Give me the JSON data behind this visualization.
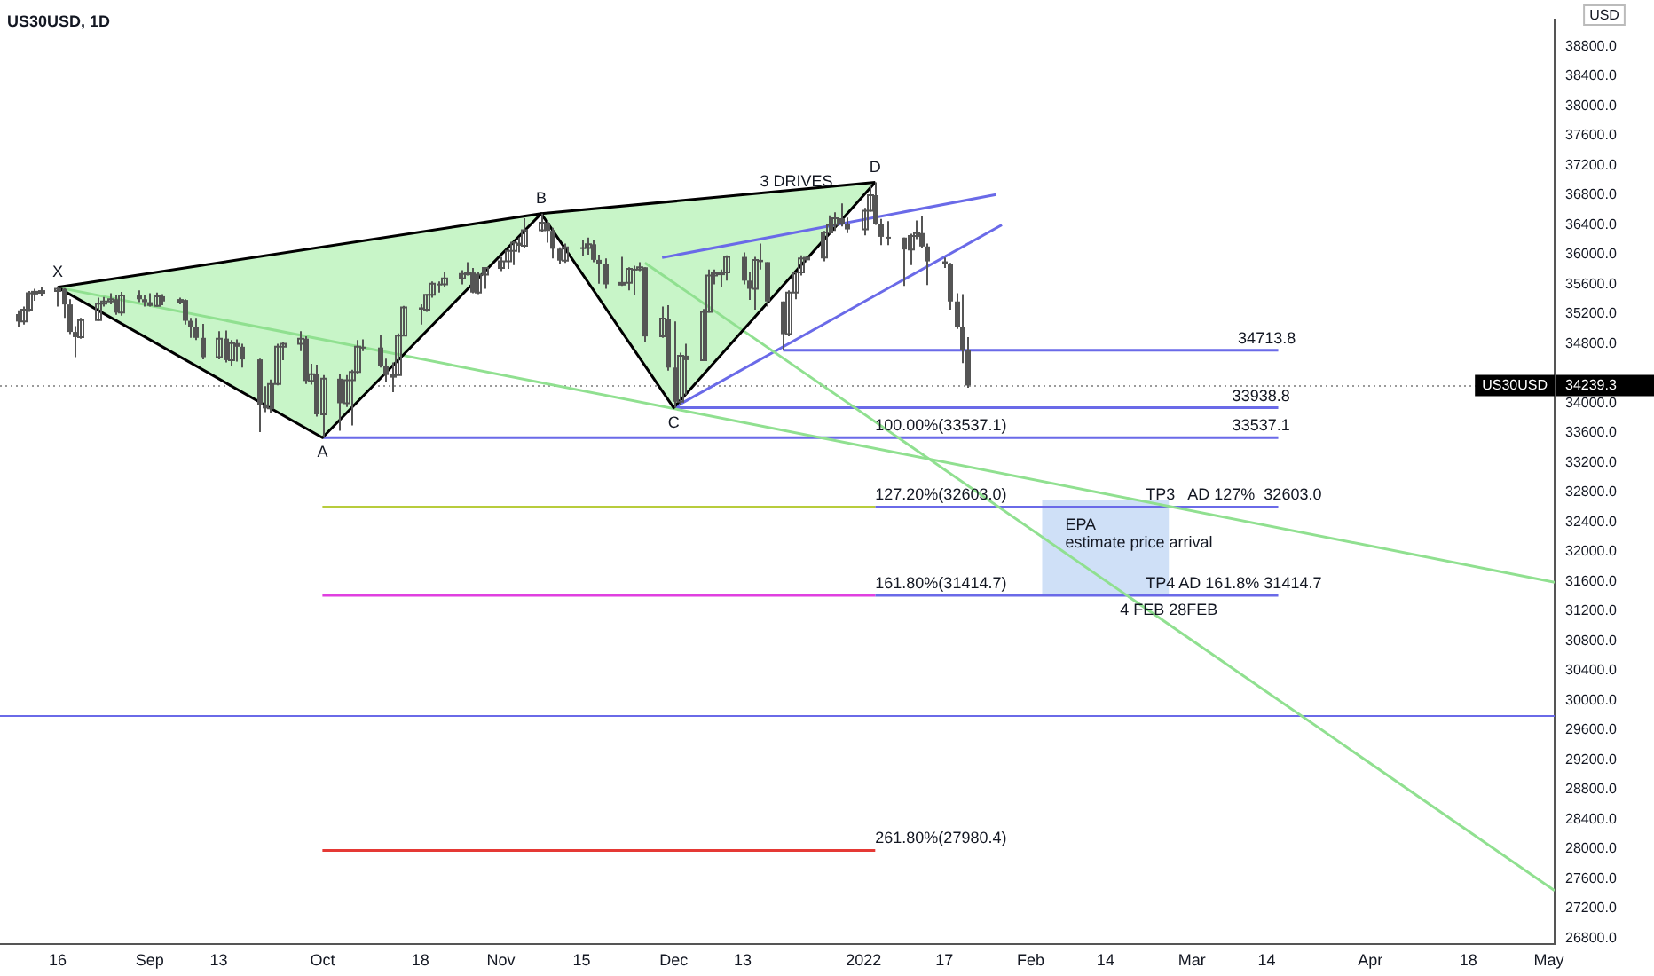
{
  "chart_data": {
    "type": "candlestick",
    "title": "US30USD, 1D",
    "ylabel": "USD",
    "color": "#555555",
    "x": [
      "2021-08-09",
      "2021-08-10",
      "2021-08-11",
      "2021-08-12",
      "2021-08-13",
      "2021-08-16",
      "2021-08-17",
      "2021-08-18",
      "2021-08-19",
      "2021-08-20",
      "2021-08-23",
      "2021-08-24",
      "2021-08-25",
      "2021-08-26",
      "2021-08-27",
      "2021-08-30",
      "2021-08-31",
      "2021-09-01",
      "2021-09-02",
      "2021-09-03",
      "2021-09-06",
      "2021-09-07",
      "2021-09-08",
      "2021-09-09",
      "2021-09-10",
      "2021-09-13",
      "2021-09-14",
      "2021-09-15",
      "2021-09-16",
      "2021-09-17",
      "2021-09-20",
      "2021-09-21",
      "2021-09-22",
      "2021-09-23",
      "2021-09-24",
      "2021-09-27",
      "2021-09-28",
      "2021-09-29",
      "2021-09-30",
      "2021-10-01",
      "2021-10-04",
      "2021-10-05",
      "2021-10-06",
      "2021-10-07",
      "2021-10-08",
      "2021-10-11",
      "2021-10-12",
      "2021-10-13",
      "2021-10-14",
      "2021-10-15",
      "2021-10-18",
      "2021-10-19",
      "2021-10-20",
      "2021-10-21",
      "2021-10-22",
      "2021-10-25",
      "2021-10-26",
      "2021-10-27",
      "2021-10-28",
      "2021-10-29",
      "2021-11-01",
      "2021-11-02",
      "2021-11-03",
      "2021-11-04",
      "2021-11-05",
      "2021-11-08",
      "2021-11-09",
      "2021-11-10",
      "2021-11-11",
      "2021-11-12",
      "2021-11-15",
      "2021-11-16",
      "2021-11-17",
      "2021-11-18",
      "2021-11-19",
      "2021-11-22",
      "2021-11-23",
      "2021-11-24",
      "2021-11-25",
      "2021-11-26",
      "2021-11-29",
      "2021-11-30",
      "2021-12-01",
      "2021-12-02",
      "2021-12-03",
      "2021-12-06",
      "2021-12-07",
      "2021-12-08",
      "2021-12-09",
      "2021-12-10",
      "2021-12-13",
      "2021-12-14",
      "2021-12-15",
      "2021-12-16",
      "2021-12-17",
      "2021-12-20",
      "2021-12-21",
      "2021-12-22",
      "2021-12-23",
      "2021-12-24",
      "2021-12-27",
      "2021-12-28",
      "2021-12-29",
      "2021-12-30",
      "2021-12-31",
      "2022-01-03",
      "2022-01-04",
      "2022-01-05",
      "2022-01-06",
      "2022-01-07",
      "2022-01-10",
      "2022-01-11",
      "2022-01-12",
      "2022-01-13",
      "2022-01-14",
      "2022-01-17",
      "2022-01-18",
      "2022-01-19",
      "2022-01-20",
      "2022-01-21"
    ],
    "ohlc": [
      [
        35200,
        35250,
        35030,
        35100
      ],
      [
        35100,
        35300,
        35060,
        35260
      ],
      [
        35260,
        35510,
        35230,
        35480
      ],
      [
        35480,
        35540,
        35380,
        35500
      ],
      [
        35500,
        35560,
        35440,
        35510
      ],
      [
        35510,
        35560,
        35300,
        35540
      ],
      [
        35540,
        35550,
        35150,
        35330
      ],
      [
        35330,
        35400,
        34930,
        34960
      ],
      [
        34960,
        35040,
        34620,
        34890
      ],
      [
        34890,
        35150,
        34870,
        35120
      ],
      [
        35120,
        35420,
        35110,
        35340
      ],
      [
        35340,
        35430,
        35300,
        35370
      ],
      [
        35370,
        35480,
        35330,
        35400
      ],
      [
        35400,
        35450,
        35190,
        35220
      ],
      [
        35220,
        35500,
        35180,
        35450
      ],
      [
        35450,
        35520,
        35360,
        35400
      ],
      [
        35400,
        35450,
        35300,
        35360
      ],
      [
        35360,
        35480,
        35300,
        35310
      ],
      [
        35310,
        35490,
        35300,
        35440
      ],
      [
        35440,
        35470,
        35320,
        35370
      ],
      [
        35370,
        35420,
        35330,
        35390
      ],
      [
        35390,
        35400,
        35060,
        35110
      ],
      [
        35110,
        35150,
        34880,
        35030
      ],
      [
        35030,
        35150,
        34850,
        34880
      ],
      [
        34880,
        35070,
        34590,
        34620
      ],
      [
        34620,
        34970,
        34590,
        34870
      ],
      [
        34870,
        34980,
        34550,
        34580
      ],
      [
        34580,
        34850,
        34500,
        34810
      ],
      [
        34810,
        34860,
        34560,
        34760
      ],
      [
        34760,
        34800,
        34480,
        34590
      ],
      [
        34590,
        34600,
        33610,
        33980
      ],
      [
        33980,
        34230,
        33880,
        33930
      ],
      [
        33930,
        34320,
        33870,
        34260
      ],
      [
        34260,
        34800,
        34240,
        34760
      ],
      [
        34760,
        34820,
        34580,
        34800
      ],
      [
        34800,
        34970,
        34700,
        34870
      ],
      [
        34870,
        34900,
        34260,
        34300
      ],
      [
        34300,
        34530,
        34250,
        34390
      ],
      [
        34390,
        34520,
        33820,
        33850
      ],
      [
        33850,
        34380,
        33537.1,
        34330
      ],
      [
        34330,
        34390,
        33630,
        34000
      ],
      [
        34000,
        34380,
        33950,
        34310
      ],
      [
        34310,
        34450,
        33700,
        34420
      ],
      [
        34420,
        34850,
        34400,
        34760
      ],
      [
        34760,
        34860,
        34700,
        34750
      ],
      [
        34750,
        34920,
        34480,
        34500
      ],
      [
        34500,
        34600,
        34290,
        34380
      ],
      [
        34380,
        34550,
        34150,
        34380
      ],
      [
        34380,
        34940,
        34380,
        34910
      ],
      [
        34910,
        35310,
        34900,
        35290
      ],
      [
        35290,
        35330,
        35060,
        35260
      ],
      [
        35260,
        35470,
        35230,
        35460
      ],
      [
        35460,
        35640,
        35420,
        35610
      ],
      [
        35610,
        35640,
        35490,
        35600
      ],
      [
        35600,
        35770,
        35560,
        35680
      ],
      [
        35680,
        35790,
        35600,
        35740
      ],
      [
        35740,
        35900,
        35720,
        35760
      ],
      [
        35760,
        35820,
        35480,
        35490
      ],
      [
        35490,
        35760,
        35470,
        35730
      ],
      [
        35730,
        35830,
        35540,
        35820
      ],
      [
        35820,
        35970,
        35780,
        35910
      ],
      [
        35910,
        36080,
        35810,
        36050
      ],
      [
        36050,
        36180,
        35860,
        36160
      ],
      [
        36160,
        36230,
        36030,
        36120
      ],
      [
        36120,
        36490,
        36090,
        36330
      ],
      [
        36330,
        36552,
        36300,
        36430
      ],
      [
        36430,
        36470,
        36160,
        36320
      ],
      [
        36320,
        36360,
        35950,
        36080
      ],
      [
        36080,
        36100,
        35880,
        35920
      ],
      [
        35920,
        36150,
        35890,
        36100
      ],
      [
        36100,
        36200,
        35980,
        36090
      ],
      [
        36090,
        36230,
        36000,
        36140
      ],
      [
        36140,
        36200,
        35900,
        35930
      ],
      [
        35930,
        36000,
        35610,
        35870
      ],
      [
        35870,
        35950,
        35540,
        35600
      ],
      [
        35600,
        35970,
        35580,
        35620
      ],
      [
        35620,
        35830,
        35520,
        35810
      ],
      [
        35810,
        35850,
        35460,
        35800
      ],
      [
        35800,
        35900,
        35780,
        35830
      ],
      [
        35830,
        35830,
        34820,
        34900
      ],
      [
        34900,
        35300,
        34880,
        35140
      ],
      [
        35140,
        35320,
        34440,
        34480
      ],
      [
        34480,
        35100,
        33938.8,
        34020
      ],
      [
        34020,
        34680,
        33980,
        34640
      ],
      [
        34640,
        34800,
        34110,
        34580
      ],
      [
        34580,
        35270,
        34570,
        35230
      ],
      [
        35230,
        35800,
        35220,
        35720
      ],
      [
        35720,
        35800,
        35600,
        35750
      ],
      [
        35750,
        35800,
        35560,
        35760
      ],
      [
        35760,
        35990,
        35650,
        35970
      ],
      [
        35970,
        36030,
        35600,
        35650
      ],
      [
        35650,
        35760,
        35390,
        35540
      ],
      [
        35540,
        35970,
        35260,
        35930
      ],
      [
        35930,
        36150,
        35800,
        35900
      ],
      [
        35900,
        35900,
        35300,
        35370
      ],
      [
        35370,
        35370,
        34713.8,
        34930
      ],
      [
        34930,
        35520,
        34900,
        35490
      ],
      [
        35490,
        35770,
        35400,
        35760
      ],
      [
        35760,
        35990,
        35720,
        35950
      ],
      [
        35950,
        35980,
        35900,
        35960
      ],
      [
        35960,
        36320,
        35910,
        36300
      ],
      [
        36300,
        36530,
        36280,
        36400
      ],
      [
        36400,
        36570,
        36320,
        36490
      ],
      [
        36490,
        36690,
        36380,
        36410
      ],
      [
        36410,
        36500,
        36290,
        36340
      ],
      [
        36340,
        36630,
        36260,
        36590
      ],
      [
        36590,
        36940,
        36580,
        36800
      ],
      [
        36800,
        36973,
        36400,
        36410
      ],
      [
        36410,
        36480,
        36130,
        36240
      ],
      [
        36240,
        36450,
        36130,
        36230
      ],
      [
        36230,
        36230,
        35580,
        36070
      ],
      [
        36070,
        36280,
        35860,
        36250
      ],
      [
        36250,
        36460,
        36210,
        36290
      ],
      [
        36290,
        36520,
        36090,
        36110
      ],
      [
        36110,
        36150,
        35590,
        35910
      ],
      [
        35910,
        35960,
        35820,
        35880
      ],
      [
        35880,
        35890,
        35260,
        35370
      ],
      [
        35370,
        35480,
        35000,
        35030
      ],
      [
        35030,
        35470,
        34540,
        34720
      ],
      [
        34720,
        34890,
        34210,
        34239.3
      ]
    ],
    "series": [
      {
        "type": "area",
        "color": "#c8f5c8",
        "x": [
          "2021-08-16",
          "2021-10-01",
          "2021-11-08",
          "2021-08-16"
        ],
        "values": [
          35560,
          33537.1,
          36552,
          35560
        ]
      },
      {
        "type": "area",
        "color": "#c8f5c8",
        "x": [
          "2021-11-08",
          "2021-12-01",
          "2022-01-05",
          "2021-11-08"
        ],
        "values": [
          36552,
          33938.8,
          36973,
          36552
        ]
      },
      {
        "type": "area",
        "color": "#cfe0f7",
        "x": [
          "2022-02-03",
          "2022-02-03",
          "2022-02-25",
          "2022-02-25"
        ],
        "values": [
          31414.7,
          32700,
          32700,
          31414.7
        ]
      },
      {
        "type": "line",
        "color": "#000000",
        "x": [
          "2021-08-16",
          "2021-10-01",
          "2021-11-08",
          "2021-12-01",
          "2022-01-05"
        ],
        "values": [
          35560,
          33537.1,
          36552,
          33938.8,
          36973
        ]
      },
      {
        "type": "line",
        "color": "#000000",
        "x": [
          "2021-08-16",
          "2021-11-08",
          "2022-01-05"
        ],
        "values": [
          35560,
          36552,
          36973
        ]
      },
      {
        "type": "line",
        "color": "#90e090",
        "x": [
          "2021-08-16",
          "2022-05-03"
        ],
        "values": [
          35560,
          31590
        ]
      },
      {
        "type": "line",
        "color": "#90e090",
        "x": [
          "2021-11-26",
          "2022-05-03"
        ],
        "values": [
          35890,
          27440
        ]
      },
      {
        "type": "line",
        "color": "#6a6ae8",
        "x": [
          "2021-11-29",
          "2022-01-26"
        ],
        "values": [
          35960,
          36810
        ]
      },
      {
        "type": "line",
        "color": "#6a6ae8",
        "x": [
          "2021-12-01",
          "2022-01-27"
        ],
        "values": [
          33938.8,
          36400
        ]
      },
      {
        "type": "line",
        "color": "#6a6ae8",
        "x": [
          "2021-12-20",
          "2022-03-16"
        ],
        "values": [
          34713.8,
          34713.8
        ]
      },
      {
        "type": "line",
        "color": "#6a6ae8",
        "x": [
          "2021-12-01",
          "2022-03-16"
        ],
        "values": [
          33938.8,
          33938.8
        ]
      },
      {
        "type": "line",
        "color": "#6a6ae8",
        "x": [
          "2021-10-01",
          "2022-03-16"
        ],
        "values": [
          33537.1,
          33537.1
        ]
      },
      {
        "type": "line",
        "color": "#b8cc3c",
        "x": [
          "2021-10-01",
          "2022-01-05"
        ],
        "values": [
          32603.0,
          32603.0
        ]
      },
      {
        "type": "line",
        "color": "#6a6ae8",
        "x": [
          "2022-01-05",
          "2022-03-16"
        ],
        "values": [
          32603.0,
          32603.0
        ]
      },
      {
        "type": "line",
        "color": "#e040e0",
        "x": [
          "2021-10-01",
          "2022-01-05"
        ],
        "values": [
          31414.7,
          31414.7
        ]
      },
      {
        "type": "line",
        "color": "#6a6ae8",
        "x": [
          "2022-01-05",
          "2022-03-16"
        ],
        "values": [
          31414.7,
          31414.7
        ]
      },
      {
        "type": "line",
        "color": "#e53935",
        "x": [
          "2021-10-01",
          "2022-01-05"
        ],
        "values": [
          27980.4,
          27980.4
        ]
      }
    ],
    "ref_lines": [
      {
        "axis": "y",
        "value": 29790,
        "color": "#6a6ae8",
        "line_style": "solid"
      },
      {
        "axis": "y",
        "value": 34239.3,
        "label": "34239.3",
        "color": "#9a9a9a",
        "line_style": "dotted"
      }
    ],
    "annotations": [
      {
        "text": "X",
        "x": "2021-08-16",
        "y": 35560
      },
      {
        "text": "A",
        "x": "2021-10-01",
        "y": 33537.1
      },
      {
        "text": "B",
        "x": "2021-11-08",
        "y": 36552
      },
      {
        "text": "C",
        "x": "2021-12-01",
        "y": 33938.8
      },
      {
        "text": "D",
        "x": "2022-01-05",
        "y": 36973
      },
      {
        "text": "3 DRIVES",
        "x": "2021-12-16",
        "y": 36828
      },
      {
        "text": "34713.8",
        "x": "2022-03-09",
        "y": 34713.8
      },
      {
        "text": "33938.8",
        "x": "2022-03-08",
        "y": 33938.8
      },
      {
        "text": "33537.1",
        "x": "2022-03-08",
        "y": 33537.1
      },
      {
        "text": "100.00%(33537.1)",
        "x": "2022-01-05",
        "y": 33537.1
      },
      {
        "text": "127.20%(32603.0)",
        "x": "2022-01-05",
        "y": 32603.0
      },
      {
        "text": "TP3   AD 127%  32603.0",
        "x": "2022-02-21",
        "y": 32603.0
      },
      {
        "text": "EPA\nestimate price arrival",
        "x": "2022-02-07",
        "y": 31960
      },
      {
        "text": "161.80%(31414.7)",
        "x": "2022-01-05",
        "y": 31414.7
      },
      {
        "text": "TP4 AD 161.8% 31414.7",
        "x": "2022-02-21",
        "y": 31414.7
      },
      {
        "text": "4 FEB 28FEB",
        "x": "2022-02-25",
        "y": 31414.7
      },
      {
        "text": "261.80%(27980.4)",
        "x": "2022-01-05",
        "y": 27980.4
      },
      "US30USD"
    ],
    "xlim": [
      "2021-08-06",
      "2022-05-03"
    ],
    "xticks": [
      {
        "value": "2021-08-16",
        "label": "16"
      },
      {
        "value": "2021-09-01",
        "label": "Sep"
      },
      {
        "value": "2021-09-13",
        "label": "13"
      },
      {
        "value": "2021-10-01",
        "label": "Oct"
      },
      {
        "value": "2021-10-18",
        "label": "18"
      },
      {
        "value": "2021-11-01",
        "label": "Nov"
      },
      {
        "value": "2021-11-15",
        "label": "15"
      },
      {
        "value": "2021-12-01",
        "label": "Dec"
      },
      {
        "value": "2021-12-13",
        "label": "13"
      },
      {
        "value": "2022-01-03",
        "label": "2022"
      },
      {
        "value": "2022-01-17",
        "label": "17"
      },
      {
        "value": "2022-02-01",
        "label": "Feb"
      },
      {
        "value": "2022-02-14",
        "label": "14"
      },
      {
        "value": "2022-03-01",
        "label": "Mar"
      },
      {
        "value": "2022-03-14",
        "label": "14"
      },
      {
        "value": "2022-04-01",
        "label": "Apr"
      },
      {
        "value": "2022-04-18",
        "label": "18"
      },
      {
        "value": "2022-05-02",
        "label": "May"
      }
    ],
    "ylim": [
      26720,
      39170
    ],
    "yticks": [
      {
        "value": 26800,
        "label": "26800.0"
      },
      {
        "value": 27200,
        "label": "27200.0"
      },
      {
        "value": 27600,
        "label": "27600.0"
      },
      {
        "value": 28000,
        "label": "28000.0"
      },
      {
        "value": 28400,
        "label": "28400.0"
      },
      {
        "value": 28800,
        "label": "28800.0"
      },
      {
        "value": 29200,
        "label": "29200.0"
      },
      {
        "value": 29600,
        "label": "29600.0"
      },
      {
        "value": 30000,
        "label": "30000.0"
      },
      {
        "value": 30400,
        "label": "30400.0"
      },
      {
        "value": 30800,
        "label": "30800.0"
      },
      {
        "value": 31200,
        "label": "31200.0"
      },
      {
        "value": 31600,
        "label": "31600.0"
      },
      {
        "value": 32000,
        "label": "32000.0"
      },
      {
        "value": 32400,
        "label": "32400.0"
      },
      {
        "value": 32800,
        "label": "32800.0"
      },
      {
        "value": 33200,
        "label": "33200.0"
      },
      {
        "value": 33600,
        "label": "33600.0"
      },
      {
        "value": 34000,
        "label": "34000.0"
      },
      {
        "value": 34800,
        "label": "34800.0"
      },
      {
        "value": 35200,
        "label": "35200.0"
      },
      {
        "value": 35600,
        "label": "35600.0"
      },
      {
        "value": 36000,
        "label": "36000.0"
      },
      {
        "value": 36400,
        "label": "36400.0"
      },
      {
        "value": 36800,
        "label": "36800.0"
      },
      {
        "value": 37200,
        "label": "37200.0"
      },
      {
        "value": 37600,
        "label": "37600.0"
      },
      {
        "value": 38000,
        "label": "38000.0"
      },
      {
        "value": 38400,
        "label": "38400.0"
      },
      {
        "value": 38800,
        "label": "38800.0"
      }
    ]
  }
}
